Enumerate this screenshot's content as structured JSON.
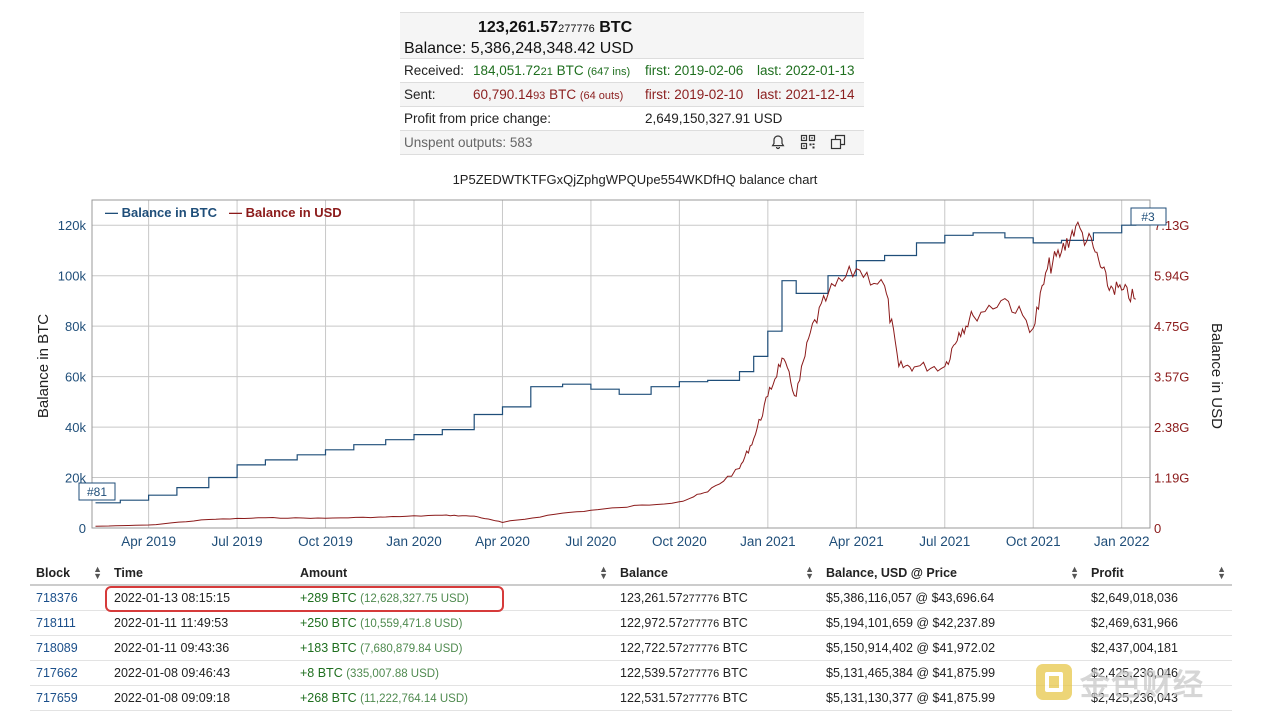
{
  "summary": {
    "balance_btc_int": "123,261.57",
    "balance_btc_frac": "277776",
    "balance_btc_unit": " BTC",
    "balance_usd_label": "Balance: ",
    "balance_usd_value": "5,386,248,348.42 USD",
    "received_label": "Received:",
    "received_int": "184,051.72",
    "received_frac": "21",
    "received_unit": " BTC ",
    "received_count": "(647 ins)",
    "received_first": "first: 2019-02-06",
    "received_last": "last: 2022-01-13",
    "sent_label": "Sent:",
    "sent_int": "60,790.14",
    "sent_frac": "93",
    "sent_unit": " BTC ",
    "sent_count": "(64 outs)",
    "sent_first": "first: 2019-02-10",
    "sent_last": "last: 2021-12-14",
    "profit_label": "Profit from price change:",
    "profit_value": "2,649,150,327.91 USD",
    "unspent_label": "Unspent outputs: 583"
  },
  "chart": {
    "title": "1P5ZEDWTKTFGxQjZphgWPQUpe554WKDfHQ balance chart",
    "legend_btc": "— Balance in BTC",
    "legend_usd": "— Balance in USD",
    "first_marker": "#81",
    "last_marker": "#3",
    "colors": {
      "btc": "#1f4e79",
      "usd": "#8b1a1a",
      "grid": "#c8c8c8"
    }
  },
  "chart_data": {
    "type": "line",
    "title": "1P5ZEDWTKTFGxQjZphgWPQUpe554WKDfHQ balance chart",
    "xlabel": "",
    "ylabel": "Balance in BTC",
    "y2label": "Balance in USD",
    "x_ticks": [
      "Apr 2019",
      "Jul 2019",
      "Oct 2019",
      "Jan 2020",
      "Apr 2020",
      "Jul 2020",
      "Oct 2020",
      "Jan 2021",
      "Apr 2021",
      "Jul 2021",
      "Oct 2021",
      "Jan 2022"
    ],
    "y_ticks": [
      "0",
      "20k",
      "40k",
      "60k",
      "80k",
      "100k",
      "120k"
    ],
    "y2_ticks": [
      "0",
      "1.19G",
      "2.38G",
      "3.57G",
      "4.75G",
      "5.94G",
      "7.13G"
    ],
    "ylim": [
      0,
      130000
    ],
    "y2lim": [
      0,
      7720000000
    ],
    "xlim": [
      2019.09,
      2022.08
    ],
    "grid": true,
    "legend": "top-left",
    "series": [
      {
        "name": "Balance in BTC",
        "x": [
          2019.1,
          2019.17,
          2019.25,
          2019.33,
          2019.42,
          2019.5,
          2019.58,
          2019.67,
          2019.75,
          2019.83,
          2019.92,
          2020.0,
          2020.08,
          2020.17,
          2020.25,
          2020.33,
          2020.42,
          2020.5,
          2020.58,
          2020.67,
          2020.75,
          2020.83,
          2020.92,
          2020.96,
          2021.0,
          2021.04,
          2021.08,
          2021.17,
          2021.25,
          2021.33,
          2021.42,
          2021.5,
          2021.58,
          2021.67,
          2021.75,
          2021.83,
          2021.92,
          2022.0,
          2022.04
        ],
        "values": [
          10000,
          11000,
          13000,
          16000,
          20000,
          25000,
          27000,
          29000,
          31000,
          33000,
          35000,
          37000,
          39000,
          45000,
          48000,
          56000,
          57000,
          55000,
          53000,
          56000,
          58000,
          58500,
          62000,
          68000,
          78000,
          98000,
          93000,
          100000,
          106000,
          108000,
          113000,
          116000,
          117000,
          115000,
          113000,
          114000,
          117000,
          120000,
          123261
        ]
      },
      {
        "name": "Balance in USD",
        "x": [
          2019.1,
          2019.25,
          2019.42,
          2019.58,
          2019.75,
          2019.92,
          2020.08,
          2020.17,
          2020.25,
          2020.42,
          2020.58,
          2020.75,
          2020.83,
          2020.92,
          2020.96,
          2021.0,
          2021.04,
          2021.08,
          2021.12,
          2021.17,
          2021.25,
          2021.33,
          2021.37,
          2021.42,
          2021.5,
          2021.54,
          2021.58,
          2021.67,
          2021.75,
          2021.79,
          2021.83,
          2021.87,
          2021.92,
          2021.96,
          2022.0,
          2022.04
        ],
        "values": [
          40000000,
          70000000,
          200000000,
          240000000,
          230000000,
          260000000,
          300000000,
          280000000,
          130000000,
          350000000,
          480000000,
          620000000,
          850000000,
          1400000000,
          2100000000,
          3100000000,
          4000000000,
          3100000000,
          4600000000,
          5500000000,
          6100000000,
          5700000000,
          3800000000,
          3800000000,
          3800000000,
          4600000000,
          5000000000,
          5400000000,
          4700000000,
          6100000000,
          6500000000,
          7100000000,
          6600000000,
          5700000000,
          5600000000,
          5386248348
        ]
      }
    ]
  },
  "table": {
    "headers": [
      "Block",
      "Time",
      "Amount",
      "Balance",
      "Balance, USD @ Price",
      "Profit"
    ],
    "rows": [
      {
        "block": "718376",
        "time": "2022-01-13 08:15:15",
        "amount_btc": "+289 BTC",
        "amount_usd": "(12,628,327.75 USD)",
        "bal_int": "123,261.57",
        "bal_frac": "277776",
        "bal_unit": " BTC",
        "bal_usd": "$5,386,116,057 @ $43,696.64",
        "profit": "$2,649,018,036"
      },
      {
        "block": "718111",
        "time": "2022-01-11 11:49:53",
        "amount_btc": "+250 BTC",
        "amount_usd": "(10,559,471.8 USD)",
        "bal_int": "122,972.57",
        "bal_frac": "277776",
        "bal_unit": " BTC",
        "bal_usd": "$5,194,101,659 @ $42,237.89",
        "profit": "$2,469,631,966"
      },
      {
        "block": "718089",
        "time": "2022-01-11 09:43:36",
        "amount_btc": "+183 BTC",
        "amount_usd": "(7,680,879.84 USD)",
        "bal_int": "122,722.57",
        "bal_frac": "277776",
        "bal_unit": " BTC",
        "bal_usd": "$5,150,914,402 @ $41,972.02",
        "profit": "$2,437,004,181"
      },
      {
        "block": "717662",
        "time": "2022-01-08 09:46:43",
        "amount_btc": "+8 BTC",
        "amount_usd": "(335,007.88 USD)",
        "bal_int": "122,539.57",
        "bal_frac": "277776",
        "bal_unit": " BTC",
        "bal_usd": "$5,131,465,384 @ $41,875.99",
        "profit": "$2,425,236,046"
      },
      {
        "block": "717659",
        "time": "2022-01-08 09:09:18",
        "amount_btc": "+268 BTC",
        "amount_usd": "(11,222,764.14 USD)",
        "bal_int": "122,531.57",
        "bal_frac": "277776",
        "bal_unit": " BTC",
        "bal_usd": "$5,131,130,377 @ $41,875.99",
        "profit": "$2,425,236,043"
      }
    ]
  },
  "watermark": {
    "text": "金色财经"
  }
}
